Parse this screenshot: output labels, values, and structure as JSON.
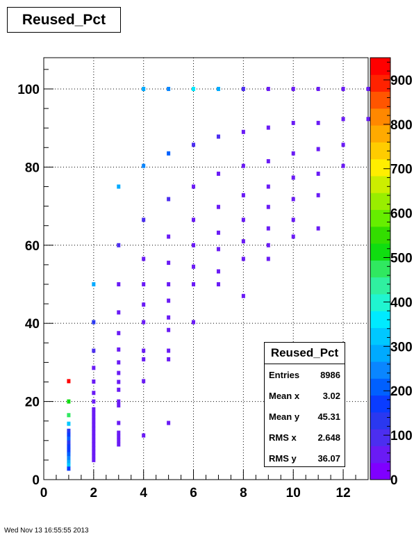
{
  "title": "Reused_Pct",
  "stats": {
    "title": "Reused_Pct",
    "rows": [
      {
        "label": "Entries",
        "value": "8986"
      },
      {
        "label": "Mean x",
        "value": "3.02"
      },
      {
        "label": "Mean y",
        "value": "45.31"
      },
      {
        "label": "RMS x",
        "value": "2.648"
      },
      {
        "label": "RMS y",
        "value": "36.07"
      }
    ]
  },
  "footer": "Wed Nov 13 16:55:55 2013",
  "chart_data": {
    "type": "heatmap",
    "title": "Reused_Pct",
    "xlim": [
      0,
      13
    ],
    "ylim": [
      0,
      108
    ],
    "zlim": [
      0,
      950
    ],
    "x_ticks": [
      0,
      2,
      4,
      6,
      8,
      10,
      12
    ],
    "y_ticks": [
      0,
      20,
      40,
      60,
      80,
      100
    ],
    "z_ticks": [
      0,
      100,
      200,
      300,
      400,
      500,
      600,
      700,
      800,
      900
    ],
    "grid": true,
    "palette": [
      "#7f00ff",
      "#6a1bf5",
      "#4c2ef0",
      "#2a38f0",
      "#0a3cff",
      "#0060ff",
      "#0a86ff",
      "#00aaff",
      "#00c8ff",
      "#00eaff",
      "#20f5d0",
      "#30f0a0",
      "#30e860",
      "#10dd10",
      "#33dd00",
      "#66ee00",
      "#99ee00",
      "#ccee00",
      "#ffee00",
      "#ffcc00",
      "#ffaa00",
      "#ff8800",
      "#ff5500",
      "#ff2200",
      "#ff0000"
    ],
    "points": [
      {
        "x": 1,
        "y": 25.2,
        "z": 940
      },
      {
        "x": 1,
        "y": 20,
        "z": 520
      },
      {
        "x": 1,
        "y": 16.5,
        "z": 470
      },
      {
        "x": 1,
        "y": 14.3,
        "z": 320
      },
      {
        "x": 1,
        "y": 12.5,
        "z": 140
      },
      {
        "x": 1,
        "y": 11.5,
        "z": 170
      },
      {
        "x": 1,
        "y": 10.5,
        "z": 200
      },
      {
        "x": 1,
        "y": 9.5,
        "z": 150
      },
      {
        "x": 1,
        "y": 8.5,
        "z": 160
      },
      {
        "x": 1,
        "y": 7.5,
        "z": 170
      },
      {
        "x": 1,
        "y": 6.5,
        "z": 190
      },
      {
        "x": 1,
        "y": 5.5,
        "z": 230
      },
      {
        "x": 1,
        "y": 4.5,
        "z": 280
      },
      {
        "x": 1,
        "y": 3.7,
        "z": 340
      },
      {
        "x": 1,
        "y": 2.8,
        "z": 180
      },
      {
        "x": 2,
        "y": 50,
        "z": 300
      },
      {
        "x": 2,
        "y": 40.3,
        "z": 120
      },
      {
        "x": 2,
        "y": 33,
        "z": 110
      },
      {
        "x": 2,
        "y": 28.6,
        "z": 40
      },
      {
        "x": 2,
        "y": 25.1,
        "z": 40
      },
      {
        "x": 2,
        "y": 22.2,
        "z": 40
      },
      {
        "x": 2,
        "y": 20,
        "z": 40
      },
      {
        "x": 2,
        "y": 18,
        "z": 40
      },
      {
        "x": 2,
        "y": 17,
        "z": 40
      },
      {
        "x": 2,
        "y": 16,
        "z": 40
      },
      {
        "x": 2,
        "y": 15,
        "z": 40
      },
      {
        "x": 2,
        "y": 14,
        "z": 40
      },
      {
        "x": 2,
        "y": 13,
        "z": 40
      },
      {
        "x": 2,
        "y": 12,
        "z": 40
      },
      {
        "x": 2,
        "y": 11,
        "z": 40
      },
      {
        "x": 2,
        "y": 10,
        "z": 40
      },
      {
        "x": 2,
        "y": 9,
        "z": 40
      },
      {
        "x": 2,
        "y": 8,
        "z": 40
      },
      {
        "x": 2,
        "y": 7,
        "z": 40
      },
      {
        "x": 2,
        "y": 6,
        "z": 40
      },
      {
        "x": 2,
        "y": 5,
        "z": 40
      },
      {
        "x": 3,
        "y": 75,
        "z": 300
      },
      {
        "x": 3,
        "y": 60,
        "z": 100
      },
      {
        "x": 3,
        "y": 50,
        "z": 60
      },
      {
        "x": 3,
        "y": 42.8,
        "z": 40
      },
      {
        "x": 3,
        "y": 37.5,
        "z": 40
      },
      {
        "x": 3,
        "y": 33.3,
        "z": 40
      },
      {
        "x": 3,
        "y": 30,
        "z": 40
      },
      {
        "x": 3,
        "y": 27.3,
        "z": 40
      },
      {
        "x": 3,
        "y": 25,
        "z": 40
      },
      {
        "x": 3,
        "y": 23,
        "z": 40
      },
      {
        "x": 3,
        "y": 20,
        "z": 40
      },
      {
        "x": 3,
        "y": 19,
        "z": 40
      },
      {
        "x": 3,
        "y": 14.5,
        "z": 40
      },
      {
        "x": 3,
        "y": 12,
        "z": 40
      },
      {
        "x": 3,
        "y": 11,
        "z": 40
      },
      {
        "x": 3,
        "y": 10,
        "z": 40
      },
      {
        "x": 3,
        "y": 9,
        "z": 40
      },
      {
        "x": 4,
        "y": 100,
        "z": 300
      },
      {
        "x": 4,
        "y": 80.3,
        "z": 230
      },
      {
        "x": 4,
        "y": 66.5,
        "z": 100
      },
      {
        "x": 4,
        "y": 56.5,
        "z": 50
      },
      {
        "x": 4,
        "y": 50,
        "z": 50
      },
      {
        "x": 4,
        "y": 44.8,
        "z": 40
      },
      {
        "x": 4,
        "y": 40.3,
        "z": 40
      },
      {
        "x": 4,
        "y": 33,
        "z": 40
      },
      {
        "x": 4,
        "y": 30.8,
        "z": 40
      },
      {
        "x": 4,
        "y": 25.2,
        "z": 40
      },
      {
        "x": 4,
        "y": 11.3,
        "z": 40
      },
      {
        "x": 5,
        "y": 100,
        "z": 250
      },
      {
        "x": 5,
        "y": 83.5,
        "z": 200
      },
      {
        "x": 5,
        "y": 71.8,
        "z": 110
      },
      {
        "x": 5,
        "y": 62.2,
        "z": 40
      },
      {
        "x": 5,
        "y": 55.5,
        "z": 40
      },
      {
        "x": 5,
        "y": 50,
        "z": 40
      },
      {
        "x": 5,
        "y": 45.8,
        "z": 40
      },
      {
        "x": 5,
        "y": 41.5,
        "z": 40
      },
      {
        "x": 5,
        "y": 38.3,
        "z": 40
      },
      {
        "x": 5,
        "y": 33,
        "z": 40
      },
      {
        "x": 5,
        "y": 30.8,
        "z": 40
      },
      {
        "x": 5,
        "y": 14.5,
        "z": 40
      },
      {
        "x": 6,
        "y": 100,
        "z": 360
      },
      {
        "x": 6,
        "y": 85.7,
        "z": 100
      },
      {
        "x": 6,
        "y": 75,
        "z": 40
      },
      {
        "x": 6,
        "y": 66.5,
        "z": 40
      },
      {
        "x": 6,
        "y": 60,
        "z": 40
      },
      {
        "x": 6,
        "y": 54.5,
        "z": 40
      },
      {
        "x": 6,
        "y": 50,
        "z": 40
      },
      {
        "x": 6,
        "y": 40.3,
        "z": 40
      },
      {
        "x": 7,
        "y": 100,
        "z": 270
      },
      {
        "x": 7,
        "y": 87.8,
        "z": 100
      },
      {
        "x": 7,
        "y": 78.3,
        "z": 40
      },
      {
        "x": 7,
        "y": 69.8,
        "z": 40
      },
      {
        "x": 7,
        "y": 63.2,
        "z": 40
      },
      {
        "x": 7,
        "y": 59,
        "z": 40
      },
      {
        "x": 7,
        "y": 53.3,
        "z": 40
      },
      {
        "x": 7,
        "y": 50,
        "z": 40
      },
      {
        "x": 8,
        "y": 100,
        "z": 100
      },
      {
        "x": 8,
        "y": 89,
        "z": 40
      },
      {
        "x": 8,
        "y": 80.3,
        "z": 40
      },
      {
        "x": 8,
        "y": 72.8,
        "z": 40
      },
      {
        "x": 8,
        "y": 66.5,
        "z": 40
      },
      {
        "x": 8,
        "y": 61,
        "z": 40
      },
      {
        "x": 8,
        "y": 56.5,
        "z": 40
      },
      {
        "x": 8,
        "y": 47,
        "z": 40
      },
      {
        "x": 9,
        "y": 100,
        "z": 60
      },
      {
        "x": 9,
        "y": 90.1,
        "z": 40
      },
      {
        "x": 9,
        "y": 81.5,
        "z": 40
      },
      {
        "x": 9,
        "y": 75,
        "z": 40
      },
      {
        "x": 9,
        "y": 69.8,
        "z": 40
      },
      {
        "x": 9,
        "y": 64.3,
        "z": 40
      },
      {
        "x": 9,
        "y": 60,
        "z": 40
      },
      {
        "x": 9,
        "y": 56.5,
        "z": 40
      },
      {
        "x": 10,
        "y": 100,
        "z": 60
      },
      {
        "x": 10,
        "y": 91.3,
        "z": 40
      },
      {
        "x": 10,
        "y": 83.5,
        "z": 40
      },
      {
        "x": 10,
        "y": 77.3,
        "z": 40
      },
      {
        "x": 10,
        "y": 71.8,
        "z": 40
      },
      {
        "x": 10,
        "y": 66.5,
        "z": 40
      },
      {
        "x": 10,
        "y": 62.2,
        "z": 40
      },
      {
        "x": 11,
        "y": 100,
        "z": 40
      },
      {
        "x": 11,
        "y": 91.3,
        "z": 40
      },
      {
        "x": 11,
        "y": 84.6,
        "z": 40
      },
      {
        "x": 11,
        "y": 78.3,
        "z": 40
      },
      {
        "x": 11,
        "y": 72.8,
        "z": 40
      },
      {
        "x": 11,
        "y": 64.3,
        "z": 40
      },
      {
        "x": 12,
        "y": 100,
        "z": 40
      },
      {
        "x": 12,
        "y": 92.3,
        "z": 40
      },
      {
        "x": 12,
        "y": 85.7,
        "z": 40
      },
      {
        "x": 12,
        "y": 80.3,
        "z": 40
      },
      {
        "x": 13,
        "y": 100,
        "z": 40
      },
      {
        "x": 13,
        "y": 92.3,
        "z": 40
      }
    ]
  }
}
